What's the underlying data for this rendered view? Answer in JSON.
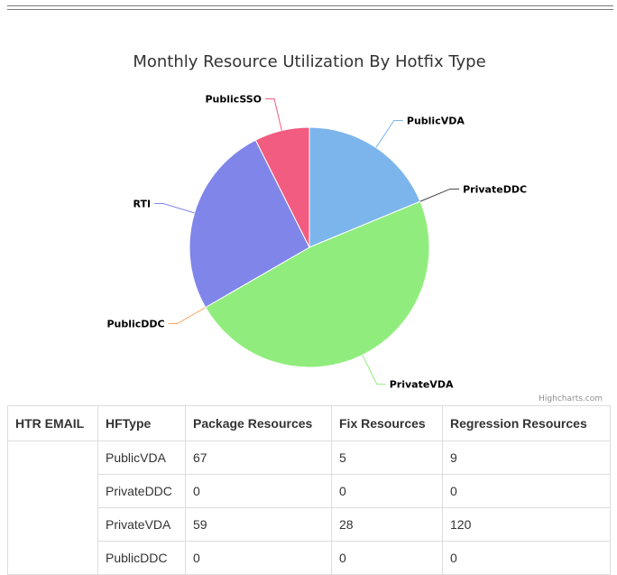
{
  "chart_data": {
    "type": "pie",
    "title": "Monthly Resource Utilization By Hotfix Type",
    "credits": "Highcharts.com",
    "slices": [
      {
        "name": "PublicVDA",
        "value": 81,
        "color": "#7cb5ec"
      },
      {
        "name": "PrivateDDC",
        "value": 0,
        "color": "#434348"
      },
      {
        "name": "PrivateVDA",
        "value": 207,
        "color": "#90ed7d"
      },
      {
        "name": "PublicDDC",
        "value": 0,
        "color": "#f7a35c"
      },
      {
        "name": "RTI",
        "value": 112,
        "color": "#8085e9"
      },
      {
        "name": "PublicSSO",
        "value": 32,
        "color": "#f15c80"
      }
    ]
  },
  "table": {
    "headers": [
      "HTR EMAIL",
      "HFType",
      "Package Resources",
      "Fix Resources",
      "Regression Resources"
    ],
    "email": "",
    "rows": [
      [
        "PublicVDA",
        "67",
        "5",
        "9"
      ],
      [
        "PrivateDDC",
        "0",
        "0",
        "0"
      ],
      [
        "PrivateVDA",
        "59",
        "28",
        "120"
      ],
      [
        "PublicDDC",
        "0",
        "0",
        "0"
      ]
    ]
  }
}
